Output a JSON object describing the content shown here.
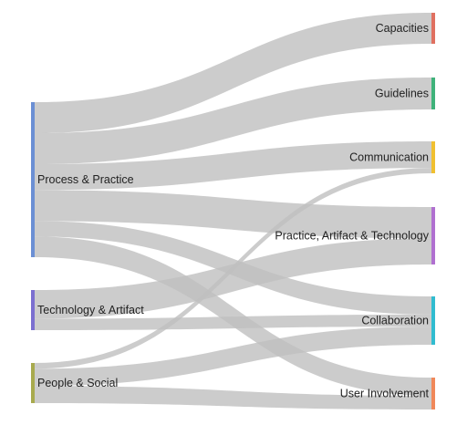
{
  "chart_data": {
    "type": "sankey",
    "title": "",
    "colors": {
      "link": "#bfbfbf",
      "Process & Practice": "#6b8fd4",
      "Technology & Artifact": "#7b6fd0",
      "People & Social": "#a8aa4e",
      "Capacities": "#e07060",
      "Guidelines": "#3fb27a",
      "Communication": "#f0c030",
      "Practice, Artifact & Technology": "#b070d0",
      "Collaboration": "#30bcd0",
      "User Involvement": "#f0885a"
    },
    "sources": [
      "Process & Practice",
      "Technology & Artifact",
      "People & Social"
    ],
    "targets": [
      "Capacities",
      "Guidelines",
      "Communication",
      "Practice, Artifact & Technology",
      "Collaboration",
      "User Involvement"
    ],
    "links": [
      {
        "source": "Process & Practice",
        "target": "Capacities",
        "value": 6
      },
      {
        "source": "Process & Practice",
        "target": "Guidelines",
        "value": 6
      },
      {
        "source": "Process & Practice",
        "target": "Communication",
        "value": 5
      },
      {
        "source": "Process & Practice",
        "target": "Practice, Artifact & Technology",
        "value": 6
      },
      {
        "source": "Process & Practice",
        "target": "Collaboration",
        "value": 3
      },
      {
        "source": "Process & Practice",
        "target": "User Involvement",
        "value": 4
      },
      {
        "source": "Technology & Artifact",
        "target": "Practice, Artifact & Technology",
        "value": 5
      },
      {
        "source": "Technology & Artifact",
        "target": "Collaboration",
        "value": 2
      },
      {
        "source": "People & Social",
        "target": "Communication",
        "value": 1
      },
      {
        "source": "People & Social",
        "target": "Collaboration",
        "value": 3
      },
      {
        "source": "People & Social",
        "target": "User Involvement",
        "value": 3
      }
    ]
  }
}
